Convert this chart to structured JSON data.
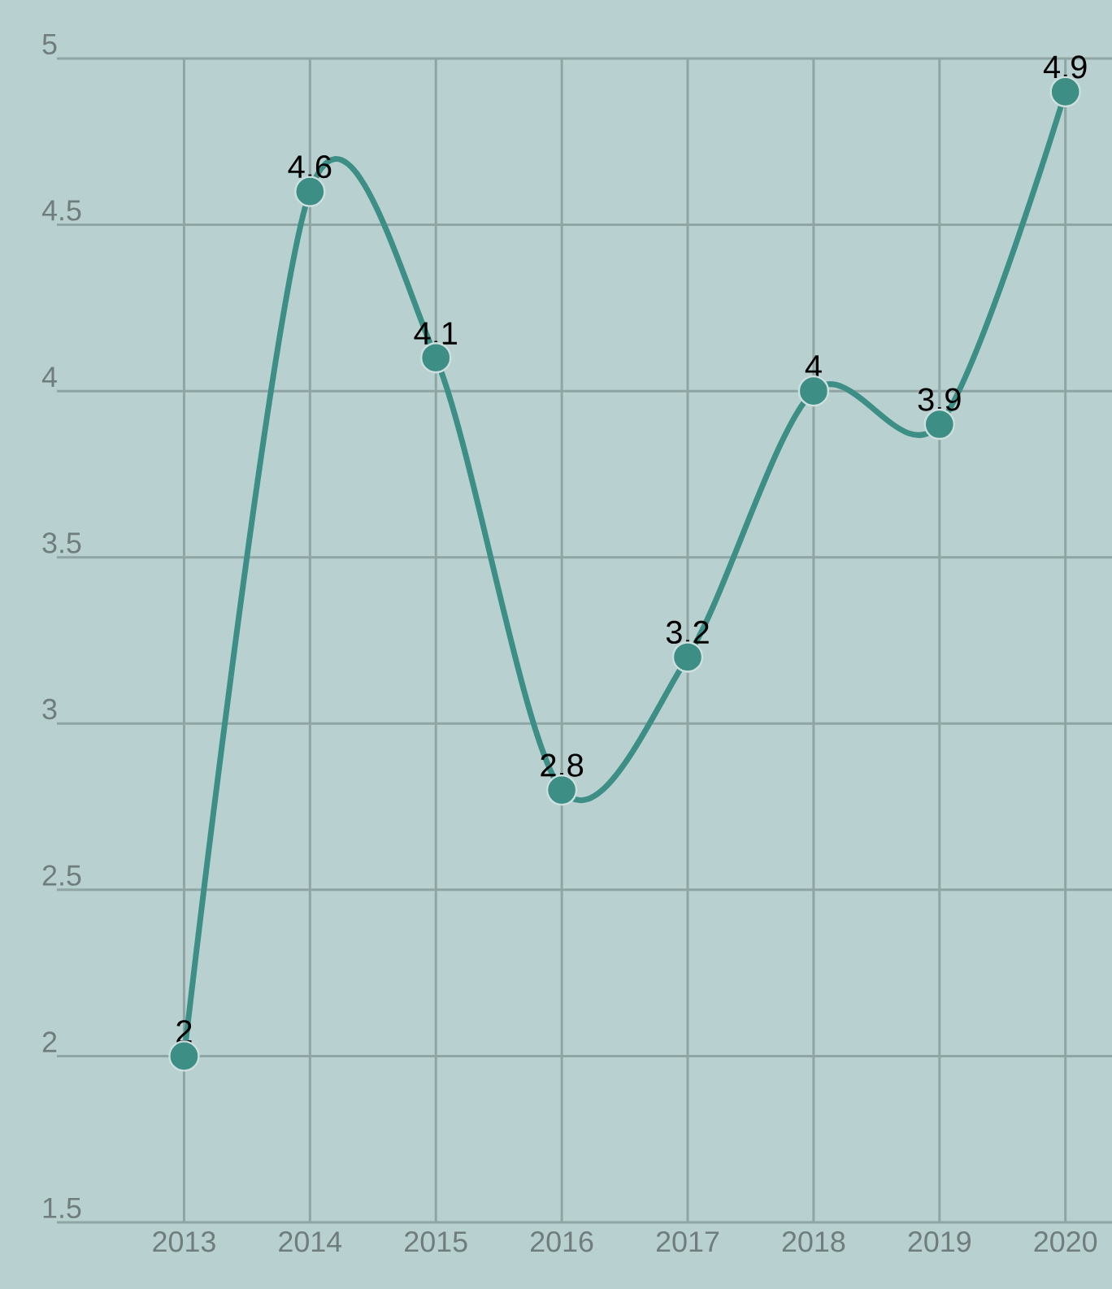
{
  "chart_data": {
    "type": "line",
    "categories": [
      "2013",
      "2014",
      "2015",
      "2016",
      "2017",
      "2018",
      "2019",
      "2020"
    ],
    "values": [
      2,
      4.6,
      4.1,
      2.8,
      3.2,
      4,
      3.9,
      4.9
    ],
    "color": "#3d8f86",
    "ylim": [
      1.5,
      5
    ],
    "yticks": [
      1.5,
      2,
      2.5,
      3,
      3.5,
      4,
      4.5,
      5
    ],
    "grid": true,
    "marker": "circle",
    "data_labels": true
  }
}
